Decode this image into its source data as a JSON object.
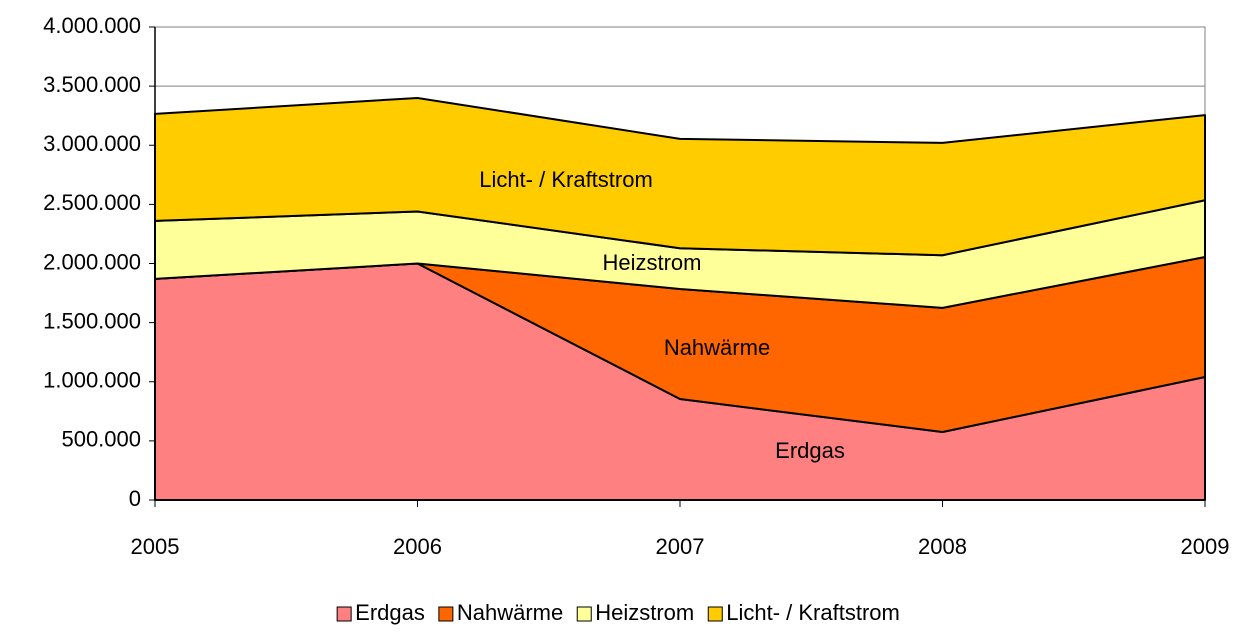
{
  "chart_data": {
    "type": "area",
    "x": [
      2005,
      2006,
      2007,
      2008,
      2009
    ],
    "xlim": [
      2005,
      2009
    ],
    "xticks": [
      2005,
      2006,
      2007,
      2008,
      2009
    ],
    "ylim": [
      0,
      4000000
    ],
    "yticks": [
      0,
      {
        "value": 500000,
        "label": "500.000"
      },
      {
        "value": 1000000,
        "label": "1.000.000"
      },
      {
        "value": 1500000,
        "label": "1.500.000"
      },
      {
        "value": 2000000,
        "label": "2.000.000"
      },
      {
        "value": 2500000,
        "label": "2.500.000"
      },
      {
        "value": 3000000,
        "label": "3.000.000"
      },
      {
        "value": 3500000,
        "label": "3.500.000"
      },
      {
        "value": 4000000,
        "label": "4.000.000"
      }
    ],
    "grid": true,
    "stacked": true,
    "legend": "bottom",
    "series": [
      {
        "name": "Erdgas",
        "color": "#ff8080",
        "values": [
          1870000,
          2000000,
          854000,
          575000,
          1040000
        ]
      },
      {
        "name": "Nahwärme",
        "color": "#ff6600",
        "values": [
          0,
          0,
          930000,
          1050000,
          1015000
        ]
      },
      {
        "name": "Heizstrom",
        "color": "#ffff99",
        "values": [
          490000,
          440000,
          345000,
          445000,
          480000
        ]
      },
      {
        "name": "Licht- / Kraftstrom",
        "color": "#ffcc00",
        "values": [
          905000,
          960000,
          925000,
          950000,
          720000
        ]
      }
    ]
  }
}
